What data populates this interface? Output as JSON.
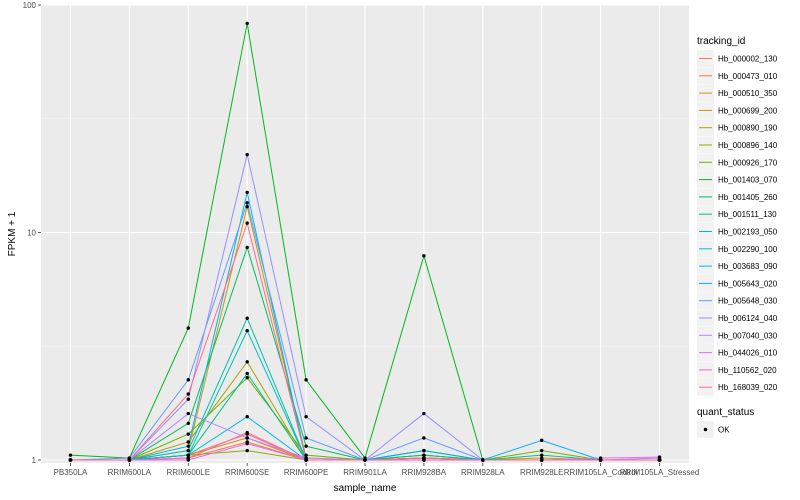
{
  "chart_data": {
    "type": "line",
    "xlabel": "sample_name",
    "ylabel": "FPKM + 1",
    "y_scale": "log10",
    "ylim": [
      0.97,
      100
    ],
    "y_ticks": [
      1,
      10,
      100
    ],
    "grid": true,
    "categories": [
      "PB350LA",
      "RRIM600LA",
      "RRIM600LE",
      "RRIM600SE",
      "RRIM600PE",
      "RRIM901LA",
      "RRIM928BA",
      "RRIM928LA",
      "RRIM928LE",
      "RRIM105LA_Control",
      "RRIM105LA_Stressed"
    ],
    "legend": {
      "position": "right",
      "title": "tracking_id",
      "shape_title": "quant_status",
      "shape_label": "OK"
    },
    "series": [
      {
        "name": "Hb_000002_130",
        "color": "#F8766D",
        "values": [
          1.0,
          1.0,
          1.05,
          1.3,
          1.0,
          1.0,
          1.02,
          1.0,
          1.0,
          1.0,
          1.0
        ]
      },
      {
        "name": "Hb_000473_010",
        "color": "#EC8239",
        "values": [
          1.0,
          1.0,
          1.02,
          1.2,
          1.0,
          1.0,
          1.02,
          1.0,
          1.0,
          1.0,
          1.0
        ]
      },
      {
        "name": "Hb_000510_350",
        "color": "#DB8E00",
        "values": [
          1.0,
          1.0,
          1.05,
          1.25,
          1.0,
          1.0,
          1.0,
          1.0,
          1.0,
          1.0,
          1.0
        ]
      },
      {
        "name": "Hb_000699_200",
        "color": "#C79800",
        "values": [
          1.0,
          1.0,
          1.1,
          13.0,
          1.02,
          1.0,
          1.05,
          1.0,
          1.02,
          1.0,
          1.0
        ]
      },
      {
        "name": "Hb_000890_190",
        "color": "#AFA100",
        "values": [
          1.0,
          1.0,
          1.2,
          2.7,
          1.0,
          1.0,
          1.05,
          1.0,
          1.0,
          1.0,
          1.0
        ]
      },
      {
        "name": "Hb_000896_140",
        "color": "#96A900",
        "values": [
          1.0,
          1.0,
          1.05,
          1.1,
          1.0,
          1.0,
          1.0,
          1.0,
          1.0,
          1.0,
          1.0
        ]
      },
      {
        "name": "Hb_000926_170",
        "color": "#72B000",
        "values": [
          1.0,
          1.0,
          1.3,
          2.3,
          1.05,
          1.0,
          1.02,
          1.0,
          1.1,
          1.0,
          1.0
        ]
      },
      {
        "name": "Hb_001403_070",
        "color": "#00B81F",
        "values": [
          1.05,
          1.02,
          3.8,
          83.0,
          2.25,
          1.02,
          7.9,
          1.0,
          1.0,
          1.0,
          1.0
        ]
      },
      {
        "name": "Hb_001405_260",
        "color": "#00BD5C",
        "values": [
          1.0,
          1.0,
          1.45,
          8.6,
          1.15,
          1.0,
          1.1,
          1.0,
          1.0,
          1.0,
          1.0
        ]
      },
      {
        "name": "Hb_001511_130",
        "color": "#00C085",
        "values": [
          1.0,
          1.0,
          1.05,
          2.4,
          1.0,
          1.0,
          1.05,
          1.0,
          1.05,
          1.0,
          1.0
        ]
      },
      {
        "name": "Hb_002193_050",
        "color": "#00C1A7",
        "values": [
          1.0,
          1.0,
          1.1,
          4.2,
          1.0,
          1.0,
          1.02,
          1.0,
          1.0,
          1.0,
          1.0
        ]
      },
      {
        "name": "Hb_002290_100",
        "color": "#00BFC4",
        "values": [
          1.0,
          1.0,
          1.05,
          3.7,
          1.0,
          1.0,
          1.0,
          1.0,
          1.0,
          1.0,
          1.0
        ]
      },
      {
        "name": "Hb_003683_090",
        "color": "#00BADE",
        "values": [
          1.0,
          1.0,
          1.05,
          1.55,
          1.0,
          1.0,
          1.0,
          1.0,
          1.0,
          1.0,
          1.0
        ]
      },
      {
        "name": "Hb_005643_020",
        "color": "#00B0F6",
        "values": [
          1.0,
          1.0,
          1.15,
          15.0,
          1.0,
          1.0,
          1.1,
          1.0,
          1.22,
          1.0,
          1.0
        ]
      },
      {
        "name": "Hb_005648_030",
        "color": "#619CFF",
        "values": [
          1.0,
          1.02,
          2.25,
          13.5,
          1.25,
          1.0,
          1.25,
          1.0,
          1.0,
          1.0,
          1.0
        ]
      },
      {
        "name": "Hb_006124_040",
        "color": "#9590FF",
        "values": [
          1.0,
          1.0,
          1.85,
          22.0,
          1.55,
          1.0,
          1.6,
          1.0,
          1.0,
          1.0,
          1.0
        ]
      },
      {
        "name": "Hb_007040_030",
        "color": "#B983FF",
        "values": [
          1.0,
          1.0,
          1.6,
          1.25,
          1.02,
          1.0,
          1.0,
          1.0,
          1.0,
          1.0,
          1.02
        ]
      },
      {
        "name": "Hb_044026_010",
        "color": "#E76BF3",
        "values": [
          1.0,
          1.0,
          1.0,
          1.18,
          1.0,
          1.0,
          1.0,
          1.0,
          1.0,
          1.02,
          1.03
        ]
      },
      {
        "name": "Hb_110562_020",
        "color": "#FF62BC",
        "values": [
          1.0,
          1.0,
          1.02,
          1.32,
          1.0,
          1.0,
          1.0,
          1.0,
          1.0,
          1.0,
          1.0
        ]
      },
      {
        "name": "Hb_168039_020",
        "color": "#FF6C91",
        "values": [
          1.0,
          1.0,
          1.95,
          11.0,
          1.0,
          1.0,
          1.02,
          1.0,
          1.0,
          1.0,
          1.0
        ]
      }
    ]
  }
}
